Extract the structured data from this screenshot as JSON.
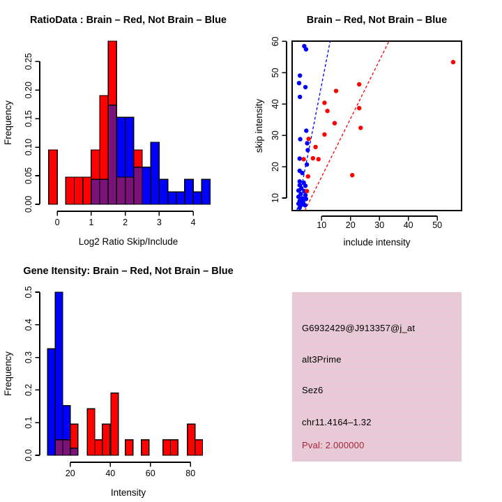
{
  "figure": {
    "background": "#ffffff",
    "panel_count": 4
  },
  "colors": {
    "brain_red": "#ff0000",
    "not_brain_blue": "#0000ff",
    "overlap_purple": "#7a127a",
    "axis_black": "#000000",
    "info_background": "#eac7d2",
    "pval_red": "#a32638"
  },
  "chart_data": [
    {
      "id": "ratio_histogram",
      "type": "bar",
      "title": "RatioData : Brain – Red, Not Brain – Blue",
      "xlabel": "Log2 Ratio Skip/Include",
      "ylabel": "Frequency",
      "xlim": [
        -0.33,
        4.51
      ],
      "ylim": [
        0,
        0.2857
      ],
      "x_ticks": [
        0,
        1,
        2,
        3,
        4
      ],
      "x_tick_labels": [
        "0",
        "1",
        "2",
        "3",
        "4"
      ],
      "y_ticks": [
        0,
        0.05,
        0.1,
        0.15,
        0.2,
        0.25
      ],
      "y_tick_labels": [
        "0.00",
        "0.05",
        "0.10",
        "0.15",
        "0.20",
        "0.25"
      ],
      "bin_width": 0.25,
      "legend_note": "red = Brain, blue = Not Brain, purple = overlap",
      "bars": [
        {
          "x0": -0.25,
          "x1": 0.0,
          "red": 0.0952,
          "blue": 0
        },
        {
          "x0": 0.25,
          "x1": 0.5,
          "red": 0.0476,
          "blue": 0
        },
        {
          "x0": 0.5,
          "x1": 0.75,
          "red": 0.0476,
          "blue": 0
        },
        {
          "x0": 0.75,
          "x1": 1.0,
          "red": 0.0476,
          "blue": 0
        },
        {
          "x0": 1.0,
          "x1": 1.25,
          "red": 0.0952,
          "blue": 0.0435
        },
        {
          "x0": 1.25,
          "x1": 1.5,
          "red": 0.1905,
          "blue": 0.0435
        },
        {
          "x0": 1.5,
          "x1": 1.75,
          "red": 0.2857,
          "blue": 0.1739
        },
        {
          "x0": 1.75,
          "x1": 2.0,
          "red": 0.0476,
          "blue": 0.1522
        },
        {
          "x0": 2.0,
          "x1": 2.25,
          "red": 0.0476,
          "blue": 0.1522
        },
        {
          "x0": 2.25,
          "x1": 2.5,
          "red": 0.0952,
          "blue": 0.0652
        },
        {
          "x0": 2.5,
          "x1": 2.75,
          "red": 0,
          "blue": 0.0652
        },
        {
          "x0": 2.75,
          "x1": 3.0,
          "red": 0,
          "blue": 0.1087
        },
        {
          "x0": 3.0,
          "x1": 3.25,
          "red": 0,
          "blue": 0.0435
        },
        {
          "x0": 3.25,
          "x1": 3.5,
          "red": 0,
          "blue": 0.0217
        },
        {
          "x0": 3.5,
          "x1": 3.75,
          "red": 0,
          "blue": 0.0217
        },
        {
          "x0": 3.75,
          "x1": 4.0,
          "red": 0,
          "blue": 0.0435
        },
        {
          "x0": 4.0,
          "x1": 4.25,
          "red": 0,
          "blue": 0.0217
        },
        {
          "x0": 4.25,
          "x1": 4.5,
          "red": 0,
          "blue": 0.0435
        }
      ]
    },
    {
      "id": "intensity_scatter",
      "type": "scatter",
      "title": "Brain – Red, Not Brain – Blue",
      "xlabel": "include intensity",
      "ylabel": "skip intensity",
      "xlim": [
        -0.2,
        58.4
      ],
      "ylim": [
        6,
        60.1
      ],
      "x_ticks": [
        10,
        20,
        30,
        40,
        50
      ],
      "x_tick_labels": [
        "10",
        "20",
        "30",
        "40",
        "50"
      ],
      "y_ticks": [
        10,
        20,
        30,
        40,
        50,
        60
      ],
      "y_tick_labels": [
        "10",
        "20",
        "30",
        "40",
        "50",
        "60"
      ],
      "red_points": [
        [
          55.5,
          53.4
        ],
        [
          23,
          46.3
        ],
        [
          15,
          44.2
        ],
        [
          11,
          40.4
        ],
        [
          12,
          37.8
        ],
        [
          23,
          38.7
        ],
        [
          14.5,
          33.9
        ],
        [
          23.5,
          32.4
        ],
        [
          11,
          30.3
        ],
        [
          5.5,
          28.9
        ],
        [
          7.9,
          26.3
        ],
        [
          7,
          22.7
        ],
        [
          8.9,
          22.4
        ],
        [
          3.8,
          22.4
        ],
        [
          5.3,
          16.9
        ],
        [
          20.6,
          17.3
        ],
        [
          4.9,
          12.2
        ]
      ],
      "blue_points": [
        [
          4,
          58.5
        ],
        [
          4.6,
          57.5
        ],
        [
          2.5,
          49.1
        ],
        [
          2.2,
          46.7
        ],
        [
          4.4,
          45.4
        ],
        [
          2.5,
          42.3
        ],
        [
          4.7,
          31.5
        ],
        [
          2.6,
          28.8
        ],
        [
          5,
          27.5
        ],
        [
          5.2,
          25.3
        ],
        [
          2.4,
          22.6
        ],
        [
          4.9,
          20.7
        ],
        [
          2.4,
          18.7
        ],
        [
          3.3,
          18
        ],
        [
          2.4,
          15.3
        ],
        [
          3.8,
          14.9
        ],
        [
          2.4,
          14.1
        ],
        [
          4.4,
          13.9
        ],
        [
          3,
          13.1
        ],
        [
          2,
          12.4
        ],
        [
          4,
          12.2
        ],
        [
          2.8,
          11.3
        ],
        [
          4.4,
          10.9
        ],
        [
          2,
          10.4
        ],
        [
          3.3,
          9.9
        ],
        [
          4.6,
          9.7
        ],
        [
          2.4,
          9.1
        ],
        [
          3.6,
          8.7
        ],
        [
          2,
          8.2
        ],
        [
          3,
          7.8
        ],
        [
          4.3,
          7.7
        ],
        [
          2.4,
          6.9
        ]
      ],
      "blue_line": {
        "x1": 1.45,
        "y1": 6,
        "x2": 12.96,
        "y2": 60.1,
        "style": "dashed"
      },
      "red_line": {
        "x1": 4.2,
        "y1": 6,
        "x2": 33.3,
        "y2": 60.1,
        "style": "dashed"
      }
    },
    {
      "id": "gene_intensity_histogram",
      "type": "bar",
      "title": "Gene Itensity: Brain – Red, Not Brain – Blue",
      "xlabel": "Intensity",
      "ylabel": "Frequency",
      "xlim": [
        7.9,
        90
      ],
      "ylim": [
        0,
        0.5
      ],
      "x_ticks": [
        20,
        40,
        60,
        80
      ],
      "x_tick_labels": [
        "20",
        "40",
        "60",
        "80"
      ],
      "y_ticks": [
        0,
        0.1,
        0.2,
        0.3,
        0.4,
        0.5
      ],
      "y_tick_labels": [
        "0.0",
        "0.1",
        "0.2",
        "0.3",
        "0.4",
        "0.5"
      ],
      "legend_note": "red = Brain, blue = Not Brain, purple = overlap",
      "bars": [
        {
          "x0": 8.75,
          "x1": 12.5,
          "red": 0,
          "blue": 0.3261
        },
        {
          "x0": 12.5,
          "x1": 16.25,
          "red": 0.0476,
          "blue": 0.5
        },
        {
          "x0": 16.25,
          "x1": 20.0,
          "red": 0.0476,
          "blue": 0.1522
        },
        {
          "x0": 20.0,
          "x1": 23.75,
          "red": 0.0952,
          "blue": 0.0217
        },
        {
          "x0": 28.5,
          "x1": 32.25,
          "red": 0.1429,
          "blue": 0
        },
        {
          "x0": 32.25,
          "x1": 36.0,
          "red": 0.0476,
          "blue": 0
        },
        {
          "x0": 36.0,
          "x1": 39.75,
          "red": 0.0952,
          "blue": 0
        },
        {
          "x0": 40.25,
          "x1": 44.0,
          "red": 0.1905,
          "blue": 0
        },
        {
          "x0": 47.5,
          "x1": 51.25,
          "red": 0.0476,
          "blue": 0
        },
        {
          "x0": 55.5,
          "x1": 59.25,
          "red": 0.0476,
          "blue": 0
        },
        {
          "x0": 66.25,
          "x1": 70.0,
          "red": 0.0476,
          "blue": 0
        },
        {
          "x0": 70.0,
          "x1": 73.75,
          "red": 0.0476,
          "blue": 0
        },
        {
          "x0": 78.5,
          "x1": 82.25,
          "red": 0.0952,
          "blue": 0
        },
        {
          "x0": 82.25,
          "x1": 86.0,
          "red": 0.0476,
          "blue": 0
        }
      ]
    }
  ],
  "info_panel": {
    "background": "#eac7d2",
    "lines": [
      {
        "text": "G6932429@J913357@j_at",
        "color": "#000000"
      },
      {
        "text": "alt3Prime",
        "color": "#000000"
      },
      {
        "text": "Sez6",
        "color": "#000000"
      },
      {
        "text": "chr11.4164–1.32",
        "color": "#000000"
      },
      {
        "text": "Pval: 2.000000",
        "color": "#a32638"
      }
    ]
  }
}
